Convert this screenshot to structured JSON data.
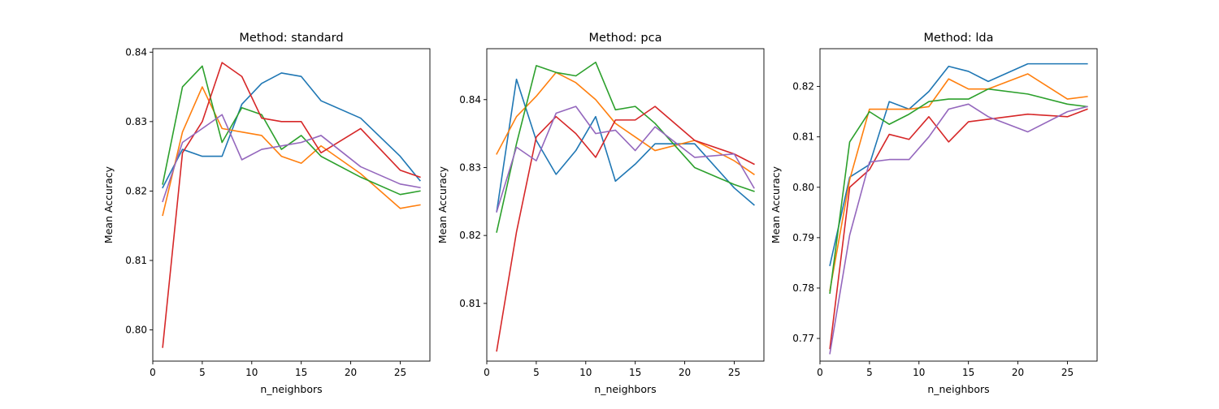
{
  "figure": {
    "background": "#ffffff"
  },
  "series_colors": [
    "#1f77b4",
    "#ff7f0e",
    "#2ca02c",
    "#d62728",
    "#9467bd"
  ],
  "chart_data": [
    {
      "type": "line",
      "title": "Method: standard",
      "xlabel": "n_neighbors",
      "ylabel": "Mean Accuracy",
      "xlim": [
        0,
        28
      ],
      "ylim": [
        0.7955,
        0.8405
      ],
      "xticks": [
        0,
        5,
        10,
        15,
        20,
        25
      ],
      "yticks": [
        0.8,
        0.81,
        0.82,
        0.83,
        0.84
      ],
      "grid": false,
      "x": [
        1,
        3,
        5,
        7,
        9,
        11,
        13,
        15,
        17,
        21,
        25,
        27
      ],
      "series": [
        {
          "values": [
            0.8205,
            0.826,
            0.825,
            0.825,
            0.8325,
            0.8355,
            0.837,
            0.8365,
            0.833,
            0.8305,
            0.825,
            0.8215
          ]
        },
        {
          "values": [
            0.8165,
            0.8285,
            0.835,
            0.829,
            0.8285,
            0.828,
            0.825,
            0.824,
            0.8265,
            0.8225,
            0.8175,
            0.818
          ]
        },
        {
          "values": [
            0.821,
            0.835,
            0.838,
            0.827,
            0.832,
            0.831,
            0.826,
            0.828,
            0.825,
            0.822,
            0.8195,
            0.82
          ]
        },
        {
          "values": [
            0.7975,
            0.8255,
            0.83,
            0.8385,
            0.8365,
            0.8305,
            0.83,
            0.83,
            0.8255,
            0.829,
            0.823,
            0.822
          ]
        },
        {
          "values": [
            0.8185,
            0.827,
            0.829,
            0.831,
            0.8245,
            0.826,
            0.8265,
            0.827,
            0.828,
            0.8235,
            0.821,
            0.8205
          ]
        }
      ]
    },
    {
      "type": "line",
      "title": "Method: pca",
      "xlabel": "n_neighbors",
      "ylabel": "Mean Accuracy",
      "xlim": [
        0,
        28
      ],
      "ylim": [
        0.8015,
        0.8475
      ],
      "xticks": [
        0,
        5,
        10,
        15,
        20,
        25
      ],
      "yticks": [
        0.81,
        0.82,
        0.83,
        0.84
      ],
      "grid": false,
      "x": [
        1,
        3,
        5,
        7,
        9,
        11,
        13,
        15,
        17,
        21,
        25,
        27
      ],
      "series": [
        {
          "values": [
            0.8235,
            0.843,
            0.834,
            0.829,
            0.8325,
            0.8375,
            0.828,
            0.8305,
            0.8335,
            0.8335,
            0.827,
            0.8245
          ]
        },
        {
          "values": [
            0.832,
            0.8375,
            0.8405,
            0.844,
            0.8425,
            0.84,
            0.8365,
            0.8345,
            0.8325,
            0.834,
            0.831,
            0.829
          ]
        },
        {
          "values": [
            0.8205,
            0.8335,
            0.845,
            0.844,
            0.8435,
            0.8455,
            0.8385,
            0.839,
            0.8365,
            0.83,
            0.8275,
            0.8265
          ]
        },
        {
          "values": [
            0.803,
            0.8205,
            0.8345,
            0.8375,
            0.835,
            0.8315,
            0.837,
            0.837,
            0.839,
            0.834,
            0.832,
            0.8305
          ]
        },
        {
          "values": [
            0.8235,
            0.833,
            0.831,
            0.838,
            0.839,
            0.835,
            0.8355,
            0.8325,
            0.836,
            0.8315,
            0.832,
            0.827
          ]
        }
      ]
    },
    {
      "type": "line",
      "title": "Method: lda",
      "xlabel": "n_neighbors",
      "ylabel": "Mean Accuracy",
      "xlim": [
        0,
        28
      ],
      "ylim": [
        0.7655,
        0.8275
      ],
      "xticks": [
        0,
        5,
        10,
        15,
        20,
        25
      ],
      "yticks": [
        0.77,
        0.78,
        0.79,
        0.8,
        0.81,
        0.82
      ],
      "grid": false,
      "x": [
        1,
        3,
        5,
        7,
        9,
        11,
        13,
        15,
        17,
        21,
        25,
        27
      ],
      "series": [
        {
          "values": [
            0.7845,
            0.802,
            0.8045,
            0.817,
            0.8155,
            0.819,
            0.824,
            0.823,
            0.821,
            0.8245,
            0.8245,
            0.8245
          ]
        },
        {
          "values": [
            0.7795,
            0.8015,
            0.8155,
            0.8155,
            0.8155,
            0.816,
            0.8215,
            0.8195,
            0.8195,
            0.8225,
            0.8175,
            0.818
          ]
        },
        {
          "values": [
            0.779,
            0.809,
            0.815,
            0.8125,
            0.8145,
            0.817,
            0.8175,
            0.8175,
            0.8195,
            0.8185,
            0.8165,
            0.816
          ]
        },
        {
          "values": [
            0.768,
            0.8,
            0.8035,
            0.8105,
            0.8095,
            0.814,
            0.809,
            0.813,
            0.8135,
            0.8145,
            0.814,
            0.8155
          ]
        },
        {
          "values": [
            0.767,
            0.7905,
            0.805,
            0.8055,
            0.8055,
            0.81,
            0.8155,
            0.8165,
            0.814,
            0.811,
            0.815,
            0.816
          ]
        }
      ]
    }
  ]
}
